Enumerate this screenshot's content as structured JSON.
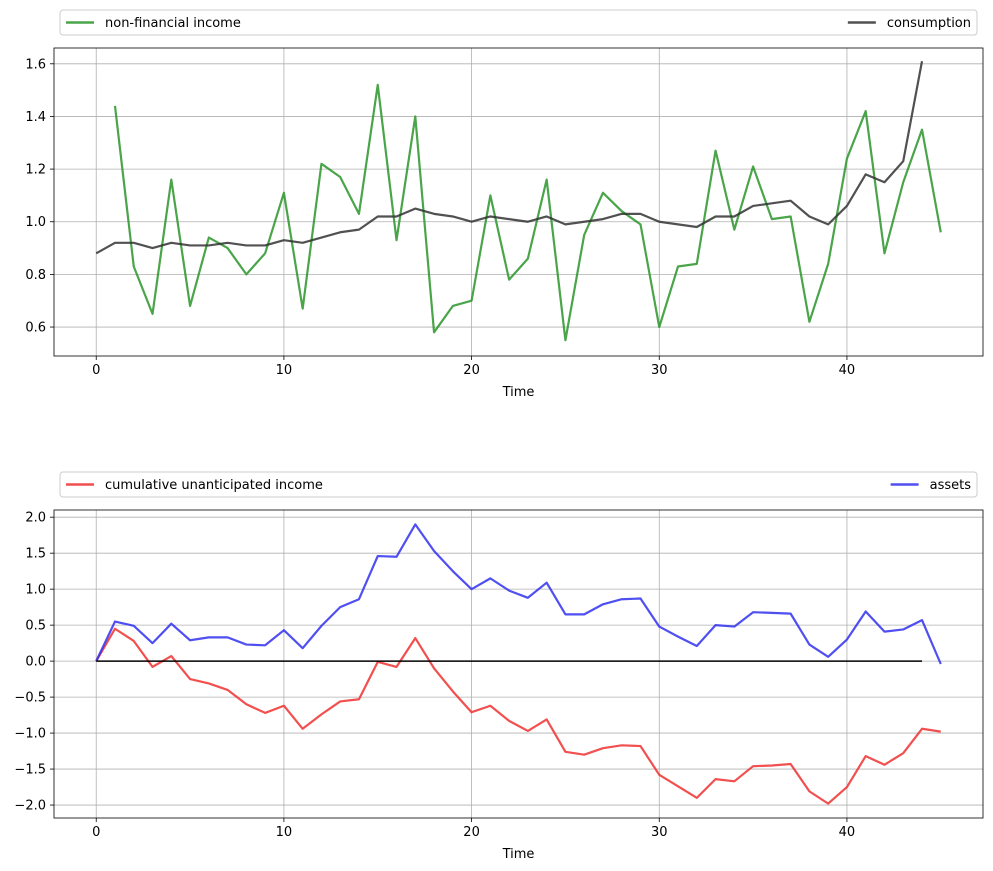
{
  "chart_data": [
    {
      "type": "line",
      "title": "",
      "xlabel": "Time",
      "ylabel": "",
      "xlim": [
        -2.25,
        47.25
      ],
      "ylim": [
        0.49,
        1.66
      ],
      "grid": true,
      "legend_placement": "above-axes, expanded",
      "xticks": [
        0,
        10,
        20,
        30,
        40
      ],
      "xtick_labels": [
        "0",
        "10",
        "20",
        "30",
        "40"
      ],
      "yticks": [
        0.6,
        0.8,
        1.0,
        1.2,
        1.4,
        1.6
      ],
      "ytick_labels": [
        "0.6",
        "0.8",
        "1.0",
        "1.2",
        "1.4",
        "1.6"
      ],
      "series": [
        {
          "name": "non-financial income",
          "color": "#2a952a",
          "x": [
            1,
            2,
            3,
            4,
            5,
            6,
            7,
            8,
            9,
            10,
            11,
            12,
            13,
            14,
            15,
            16,
            17,
            18,
            19,
            20,
            21,
            22,
            23,
            24,
            25,
            26,
            27,
            28,
            29,
            30,
            31,
            32,
            33,
            34,
            35,
            36,
            37,
            38,
            39,
            40,
            41,
            42,
            43,
            44,
            45
          ],
          "y": [
            1.44,
            0.83,
            0.65,
            1.16,
            0.68,
            0.94,
            0.9,
            0.8,
            0.88,
            1.11,
            0.67,
            1.22,
            1.17,
            1.03,
            1.52,
            0.93,
            1.4,
            0.58,
            0.68,
            0.7,
            1.1,
            0.78,
            0.86,
            1.16,
            0.55,
            0.95,
            1.11,
            1.04,
            0.99,
            0.6,
            0.83,
            0.84,
            1.27,
            0.97,
            1.21,
            1.01,
            1.02,
            0.62,
            0.84,
            1.24,
            1.42,
            0.88,
            1.15,
            1.35,
            0.96
          ]
        },
        {
          "name": "consumption",
          "color": "#333333",
          "x": [
            0,
            1,
            2,
            3,
            4,
            5,
            6,
            7,
            8,
            9,
            10,
            11,
            12,
            13,
            14,
            15,
            16,
            17,
            18,
            19,
            20,
            21,
            22,
            23,
            24,
            25,
            26,
            27,
            28,
            29,
            30,
            31,
            32,
            33,
            34,
            35,
            36,
            37,
            38,
            39,
            40,
            41,
            42,
            43,
            44
          ],
          "y": [
            0.88,
            0.92,
            0.92,
            0.9,
            0.92,
            0.91,
            0.91,
            0.92,
            0.91,
            0.91,
            0.93,
            0.92,
            0.94,
            0.96,
            0.97,
            1.02,
            1.02,
            1.05,
            1.03,
            1.02,
            1.0,
            1.02,
            1.01,
            1.0,
            1.02,
            0.99,
            1.0,
            1.01,
            1.03,
            1.03,
            1.0,
            0.99,
            0.98,
            1.02,
            1.02,
            1.06,
            1.07,
            1.08,
            1.02,
            0.99,
            1.06,
            1.18,
            1.15,
            1.23,
            1.61
          ]
        }
      ]
    },
    {
      "type": "line",
      "title": "",
      "xlabel": "Time",
      "ylabel": "",
      "xlim": [
        -2.25,
        47.25
      ],
      "ylim": [
        -2.18,
        2.1
      ],
      "grid": true,
      "legend_placement": "above-axes, expanded",
      "xticks": [
        0,
        10,
        20,
        30,
        40
      ],
      "xtick_labels": [
        "0",
        "10",
        "20",
        "30",
        "40"
      ],
      "yticks": [
        -2.0,
        -1.5,
        -1.0,
        -0.5,
        0.0,
        0.5,
        1.0,
        1.5,
        2.0
      ],
      "ytick_labels": [
        "−2.0",
        "−1.5",
        "−1.0",
        "−0.5",
        "0.0",
        "0.5",
        "1.0",
        "1.5",
        "2.0"
      ],
      "series": [
        {
          "name": "cumulative unanticipated income",
          "color": "#f03030",
          "x": [
            0,
            1,
            2,
            3,
            4,
            5,
            6,
            7,
            8,
            9,
            10,
            11,
            12,
            13,
            14,
            15,
            16,
            17,
            18,
            19,
            20,
            21,
            22,
            23,
            24,
            25,
            26,
            27,
            28,
            29,
            30,
            31,
            32,
            33,
            34,
            35,
            36,
            37,
            38,
            39,
            40,
            41,
            42,
            43,
            44,
            45
          ],
          "y": [
            0.0,
            0.45,
            0.28,
            -0.08,
            0.07,
            -0.25,
            -0.31,
            -0.4,
            -0.6,
            -0.72,
            -0.62,
            -0.94,
            -0.74,
            -0.56,
            -0.53,
            -0.01,
            -0.08,
            0.32,
            -0.1,
            -0.42,
            -0.71,
            -0.62,
            -0.83,
            -0.97,
            -0.81,
            -1.26,
            -1.3,
            -1.21,
            -1.17,
            -1.18,
            -1.58,
            -1.74,
            -1.9,
            -1.64,
            -1.67,
            -1.46,
            -1.45,
            -1.43,
            -1.81,
            -1.98,
            -1.75,
            -1.32,
            -1.44,
            -1.28,
            -0.94,
            -0.98
          ]
        },
        {
          "name": "assets",
          "color": "#3030f0",
          "x": [
            0,
            1,
            2,
            3,
            4,
            5,
            6,
            7,
            8,
            9,
            10,
            11,
            12,
            13,
            14,
            15,
            16,
            17,
            18,
            19,
            20,
            21,
            22,
            23,
            24,
            25,
            26,
            27,
            28,
            29,
            30,
            31,
            32,
            33,
            34,
            35,
            36,
            37,
            38,
            39,
            40,
            41,
            42,
            43,
            44,
            45
          ],
          "y": [
            0.0,
            0.55,
            0.49,
            0.25,
            0.52,
            0.29,
            0.33,
            0.33,
            0.23,
            0.22,
            0.43,
            0.18,
            0.49,
            0.75,
            0.86,
            1.46,
            1.45,
            1.9,
            1.53,
            1.25,
            1.0,
            1.15,
            0.98,
            0.88,
            1.09,
            0.65,
            0.65,
            0.79,
            0.86,
            0.87,
            0.48,
            0.34,
            0.21,
            0.5,
            0.48,
            0.68,
            0.67,
            0.66,
            0.23,
            0.06,
            0.3,
            0.69,
            0.41,
            0.44,
            0.57,
            -0.04
          ]
        },
        {
          "name": "zero",
          "color": "#000000",
          "legend": false,
          "x": [
            0,
            44
          ],
          "y": [
            0.0,
            0.0
          ]
        }
      ]
    }
  ]
}
